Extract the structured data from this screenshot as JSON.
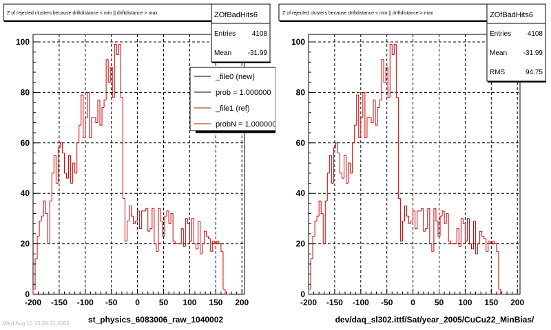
{
  "chart_data": [
    {
      "type": "histogram",
      "title": "Z of rejected clusters because driftdistance < min || driftdistance > max",
      "xlabel": "st_physics_6083006_raw_1040002",
      "ylabel": "",
      "xlim": [
        -200,
        205
      ],
      "ylim": [
        0,
        103
      ],
      "x_ticks": [
        -200,
        -150,
        -100,
        -50,
        0,
        50,
        100,
        150,
        200
      ],
      "y_ticks": [
        0,
        20,
        40,
        60,
        80,
        100
      ],
      "grid": true,
      "bin_width": 4,
      "bin_start": -200,
      "stats_box": {
        "name": "ZOfBadHits6",
        "rows": [
          {
            "label": "Entries",
            "value": "4108"
          },
          {
            "label": "Mean",
            "value": "-31.99"
          }
        ]
      },
      "legend": {
        "placement": "top-right",
        "entries": [
          {
            "label": "_file0 (new)",
            "color": "#000000"
          },
          {
            "label": "prob = 1.000000",
            "color": "#000000"
          },
          {
            "label": "_file1 (ref)",
            "color": "#cc0000"
          },
          {
            "label": "probN = 1.000000",
            "color": "#cc0000"
          }
        ]
      },
      "series": [
        {
          "color": "#cc0000",
          "values": [
            2,
            14,
            23,
            29,
            31,
            37,
            32,
            20,
            37,
            48,
            55,
            44,
            58,
            60,
            56,
            48,
            46,
            55,
            44,
            52,
            48,
            60,
            67,
            79,
            62,
            70,
            80,
            62,
            70,
            70,
            68,
            77,
            67,
            74,
            77,
            93,
            84,
            90,
            78,
            99,
            95,
            99,
            78,
            38,
            21,
            29,
            35,
            31,
            28,
            29,
            33,
            26,
            33,
            33,
            34,
            25,
            26,
            34,
            20,
            17,
            34,
            29,
            23,
            31,
            33,
            28,
            32,
            21,
            20,
            20,
            20,
            26,
            19,
            30,
            28,
            21,
            30,
            20,
            18,
            29,
            16,
            20,
            25,
            23,
            22,
            17,
            21,
            20,
            21,
            20,
            17,
            2,
            0,
            0
          ]
        }
      ]
    },
    {
      "type": "histogram",
      "title": "Z of rejected clusters because driftdistance < min || driftdistance > max",
      "xlabel": "dev/daq_sl302.ittf/Sat/year_2005/CuCu22_MinBias/",
      "ylabel": "",
      "xlim": [
        -200,
        205
      ],
      "ylim": [
        0,
        103
      ],
      "x_ticks": [
        -200,
        -150,
        -100,
        -50,
        0,
        50,
        100,
        150,
        200
      ],
      "y_ticks": [
        0,
        20,
        40,
        60,
        80,
        100
      ],
      "grid": true,
      "bin_width": 4,
      "bin_start": -200,
      "stats_box": {
        "name": "ZOfBadHits6",
        "rows": [
          {
            "label": "Entries",
            "value": "4108"
          },
          {
            "label": "Mean",
            "value": "-31.99"
          },
          {
            "label": "RMS",
            "value": "94.75"
          }
        ]
      },
      "series": [
        {
          "color": "#cc0000",
          "values": [
            2,
            14,
            23,
            29,
            31,
            37,
            32,
            20,
            37,
            48,
            55,
            44,
            58,
            60,
            56,
            48,
            46,
            55,
            44,
            52,
            48,
            60,
            67,
            79,
            62,
            70,
            80,
            62,
            70,
            70,
            68,
            77,
            67,
            74,
            77,
            93,
            84,
            90,
            78,
            99,
            95,
            99,
            78,
            38,
            21,
            29,
            35,
            31,
            28,
            29,
            33,
            26,
            33,
            33,
            34,
            25,
            26,
            34,
            20,
            17,
            34,
            29,
            23,
            31,
            33,
            28,
            32,
            21,
            20,
            20,
            20,
            26,
            19,
            30,
            28,
            21,
            30,
            20,
            18,
            29,
            16,
            20,
            25,
            23,
            22,
            17,
            21,
            20,
            21,
            20,
            17,
            2,
            0,
            0
          ]
        }
      ]
    }
  ],
  "footer": {
    "text": "Wed Aug 10 15:28:31 2005"
  }
}
